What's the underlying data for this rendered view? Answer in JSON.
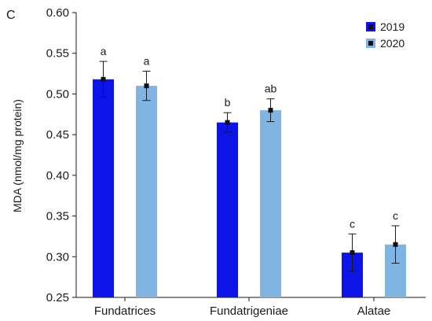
{
  "chart_data": {
    "type": "bar",
    "panel_label": "C",
    "ylabel": "MDA (nmol/mg protein)",
    "xlabel": "",
    "ylim": [
      0.25,
      0.6
    ],
    "yticks": [
      "0.25",
      "0.30",
      "0.35",
      "0.40",
      "0.45",
      "0.50",
      "0.55",
      "0.60"
    ],
    "categories": [
      "Fundatrices",
      "Fundatrigeniae",
      "Alatae"
    ],
    "legend_position": "top-right",
    "series": [
      {
        "name": "2019",
        "color": "#0d14e8",
        "values": [
          0.518,
          0.465,
          0.305
        ],
        "errors": [
          0.022,
          0.012,
          0.023
        ],
        "significance": [
          "a",
          "b",
          "c"
        ]
      },
      {
        "name": "2020",
        "color": "#7fb4e3",
        "values": [
          0.51,
          0.48,
          0.315
        ],
        "errors": [
          0.018,
          0.014,
          0.023
        ],
        "significance": [
          "a",
          "ab",
          "c"
        ]
      }
    ]
  }
}
